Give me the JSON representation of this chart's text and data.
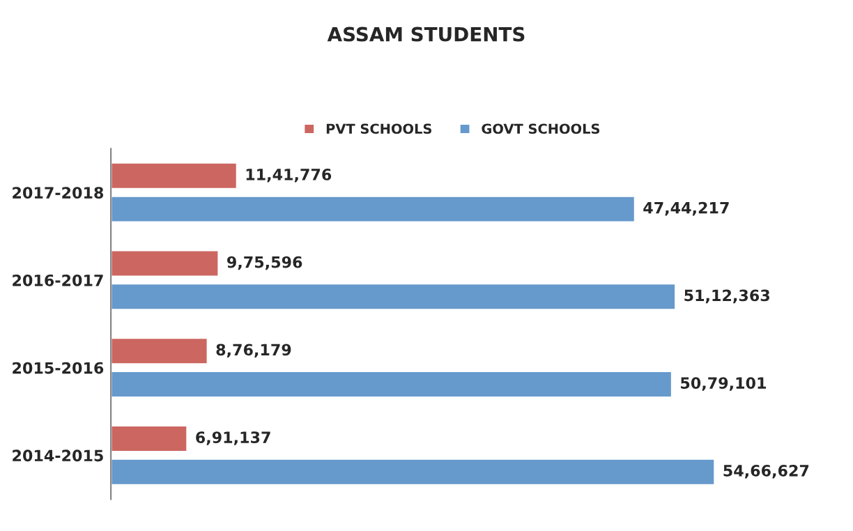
{
  "chart_data": {
    "type": "bar",
    "orientation": "horizontal",
    "title": "ASSAM STUDENTS",
    "categories": [
      "2017-2018",
      "2016-2017",
      "2015-2016",
      "2014-2015"
    ],
    "series": [
      {
        "name": "PVT SCHOOLS",
        "color": "#cc6660",
        "values": [
          1141776,
          975596,
          876179,
          691137
        ],
        "value_labels": [
          "11,41,776",
          "9,75,596",
          "8,76,179",
          "6,91,137"
        ]
      },
      {
        "name": "GOVT SCHOOLS",
        "color": "#6699cc",
        "values": [
          4744217,
          5112363,
          5079101,
          5466627
        ],
        "value_labels": [
          "47,44,217",
          "51,12,363",
          "50,79,101",
          "54,66,627"
        ]
      }
    ],
    "legend": "top",
    "grid": false,
    "tick_labels": "y"
  }
}
